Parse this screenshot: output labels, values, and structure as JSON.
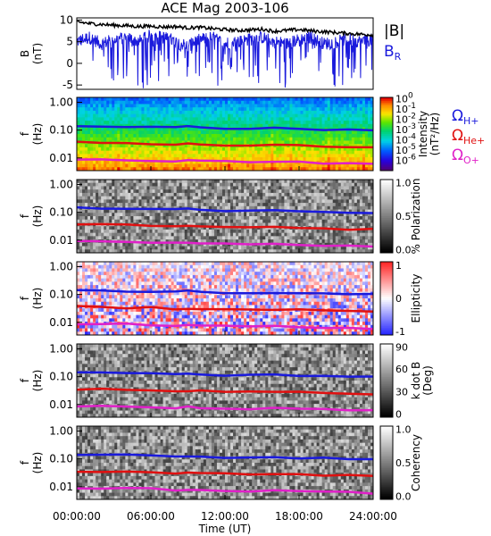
{
  "chart_data": {
    "title": "ACE Mag 2003-106",
    "type": "line",
    "xlabel": "Time (UT)",
    "x_ticks": [
      "00:00:00",
      "06:00:00",
      "12:00:00",
      "18:00:00",
      "24:00:00"
    ],
    "xlim": [
      0,
      24
    ],
    "panels": [
      {
        "id": "field",
        "type": "line",
        "ylabel": [
          "B",
          "(nT)"
        ],
        "ylim": [
          -6,
          10.5
        ],
        "y_ticks": [
          {
            "v": 10,
            "t": "10"
          },
          {
            "v": 5,
            "t": "5"
          },
          {
            "v": 0,
            "t": "0"
          },
          {
            "v": -5,
            "t": "-5"
          }
        ],
        "legend": [
          {
            "text": "|B|",
            "color": "#000000"
          },
          {
            "text": "B",
            "sub": "R",
            "color": "#1a1adc"
          }
        ],
        "series": [
          {
            "name": "|B|",
            "color": "#000000",
            "x": [
              0,
              1,
              2,
              3,
              4,
              5,
              6,
              7,
              8,
              9,
              10,
              11,
              12,
              13,
              14,
              15,
              16,
              17,
              18,
              19,
              20,
              21,
              22,
              23,
              24
            ],
            "values": [
              9.6,
              9.2,
              9.0,
              8.8,
              8.7,
              8.5,
              8.6,
              8.4,
              8.5,
              8.2,
              8.3,
              8.0,
              7.8,
              7.6,
              7.7,
              7.9,
              7.4,
              7.6,
              7.8,
              7.5,
              7.3,
              7.1,
              6.9,
              6.7,
              6.6
            ]
          },
          {
            "name": "B_R",
            "color": "#1a1adc",
            "x": [
              0,
              1,
              2,
              3,
              4,
              5,
              6,
              7,
              8,
              9,
              10,
              11,
              12,
              13,
              14,
              15,
              16,
              17,
              18,
              19,
              20,
              21,
              22,
              23,
              24
            ],
            "values": [
              5.0,
              6.0,
              4.5,
              5.5,
              6.0,
              5.0,
              6.5,
              6.0,
              5.0,
              4.0,
              5.5,
              6.0,
              4.5,
              5.0,
              5.5,
              6.0,
              5.0,
              4.5,
              5.5,
              6.0,
              4.5,
              5.0,
              5.5,
              5.0,
              5.5
            ]
          }
        ]
      },
      {
        "id": "intensity",
        "type": "heatmap",
        "ylabel": [
          "f",
          "(Hz)"
        ],
        "colormap": "rainbow",
        "colorbar_ticks": [
          {
            "base": "10",
            "exp": "0",
            "frac": 0.02
          },
          {
            "base": "10",
            "exp": "-1",
            "frac": 0.16
          },
          {
            "base": "10",
            "exp": "-2",
            "frac": 0.3
          },
          {
            "base": "10",
            "exp": "-3",
            "frac": 0.44
          },
          {
            "base": "10",
            "exp": "-4",
            "frac": 0.58
          },
          {
            "base": "10",
            "exp": "-5",
            "frac": 0.72
          },
          {
            "base": "10",
            "exp": "-6",
            "frac": 0.86
          }
        ],
        "colorbar_label": [
          "Intensity",
          "(nT²/Hz)"
        ],
        "legend": [
          {
            "text": "Ω",
            "sub": "H+",
            "color": "#1a1adc"
          },
          {
            "text": "Ω",
            "sub": "He+",
            "color": "#e01010"
          },
          {
            "text": "Ω",
            "sub": "O+",
            "color": "#e020c8"
          }
        ]
      },
      {
        "id": "polarization",
        "type": "heatmap",
        "ylabel": [
          "f",
          "(Hz)"
        ],
        "colormap": "gray",
        "colorbar_ticks": [
          {
            "t": "1.0",
            "frac": 0.04
          },
          {
            "t": "0.5",
            "frac": 0.5
          },
          {
            "t": "0.0",
            "frac": 0.96
          }
        ],
        "colorbar_label": [
          "% Polarization"
        ]
      },
      {
        "id": "ellipticity",
        "type": "heatmap",
        "ylabel": [
          "f",
          "(Hz)"
        ],
        "colormap": "bwr",
        "colorbar_ticks": [
          {
            "t": "1",
            "frac": 0.05
          },
          {
            "t": "0",
            "frac": 0.5
          },
          {
            "t": "-1",
            "frac": 0.95
          }
        ],
        "colorbar_label": [
          "Ellipticity"
        ]
      },
      {
        "id": "kdotb",
        "type": "heatmap",
        "ylabel": [
          "f",
          "(Hz)"
        ],
        "colormap": "gray",
        "colorbar_ticks": [
          {
            "t": "90",
            "frac": 0.04
          },
          {
            "t": "60",
            "frac": 0.34
          },
          {
            "t": "30",
            "frac": 0.65
          },
          {
            "t": "0",
            "frac": 0.96
          }
        ],
        "colorbar_label": [
          "k dot B",
          "(Deg)"
        ]
      },
      {
        "id": "coherency",
        "type": "heatmap",
        "ylabel": [
          "f",
          "(Hz)"
        ],
        "colormap": "gray",
        "colorbar_ticks": [
          {
            "t": "1.0",
            "frac": 0.04
          },
          {
            "t": "0.5",
            "frac": 0.5
          },
          {
            "t": "0.0",
            "frac": 0.96
          }
        ],
        "colorbar_label": [
          "Coherency"
        ]
      }
    ],
    "freq_axis": {
      "scale": "log",
      "ylim": [
        0.0035,
        1.5
      ],
      "ticks": [
        {
          "v": 1.0,
          "t": "1.00"
        },
        {
          "v": 0.1,
          "t": "0.10"
        },
        {
          "v": 0.01,
          "t": "0.01"
        }
      ]
    },
    "gyrofrequency_lines": [
      {
        "name": "Ω_H+",
        "color": "#1a1adc",
        "x": [
          0,
          2,
          4,
          6,
          8,
          9,
          10,
          12,
          14,
          16,
          18,
          20,
          22,
          24
        ],
        "values": [
          0.145,
          0.14,
          0.135,
          0.13,
          0.125,
          0.13,
          0.12,
          0.115,
          0.11,
          0.115,
          0.11,
          0.105,
          0.1,
          0.098
        ]
      },
      {
        "name": "Ω_He+",
        "color": "#e01010",
        "x": [
          0,
          2,
          4,
          6,
          8,
          9,
          10,
          12,
          14,
          16,
          18,
          20,
          22,
          24
        ],
        "values": [
          0.036,
          0.035,
          0.034,
          0.033,
          0.031,
          0.032,
          0.03,
          0.029,
          0.028,
          0.029,
          0.028,
          0.026,
          0.025,
          0.024
        ]
      },
      {
        "name": "Ω_O+",
        "color": "#e020c8",
        "x": [
          0,
          2,
          4,
          6,
          8,
          9,
          10,
          12,
          14,
          16,
          18,
          20,
          22,
          24
        ],
        "values": [
          0.009,
          0.0088,
          0.0085,
          0.0082,
          0.0078,
          0.008,
          0.0075,
          0.0072,
          0.007,
          0.0072,
          0.007,
          0.0066,
          0.0063,
          0.006
        ]
      }
    ]
  }
}
